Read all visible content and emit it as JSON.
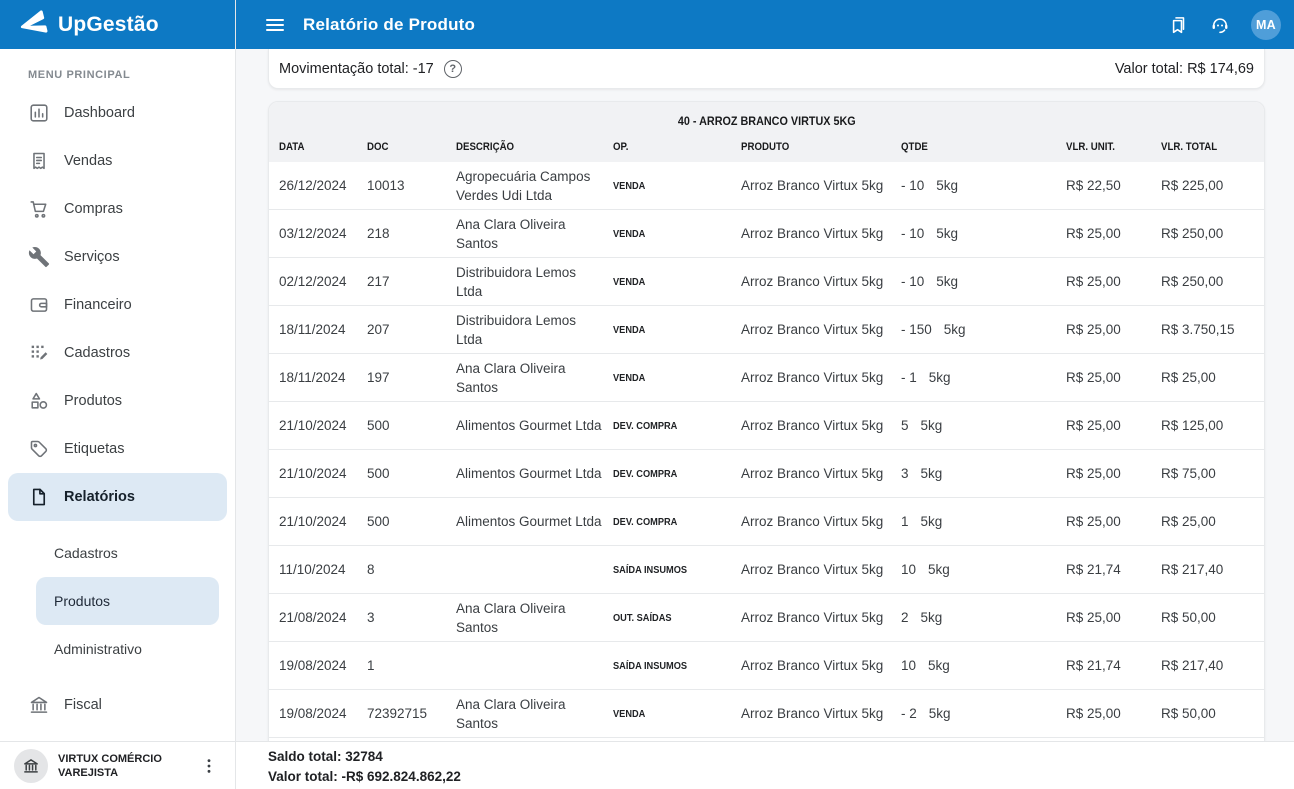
{
  "colors": {
    "header_blue": "#0d79c4",
    "avatar_blue": "#4f9ed9",
    "active_item_bg": "#dde9f4"
  },
  "sidebar": {
    "logo_text": "UpGestão",
    "section_label": "MENU PRINCIPAL",
    "items": [
      {
        "label": "Dashboard",
        "icon": "dashboard-icon"
      },
      {
        "label": "Vendas",
        "icon": "receipt-icon"
      },
      {
        "label": "Compras",
        "icon": "cart-icon"
      },
      {
        "label": "Serviços",
        "icon": "wrench-icon"
      },
      {
        "label": "Financeiro",
        "icon": "wallet-icon"
      },
      {
        "label": "Cadastros",
        "icon": "grid-edit-icon"
      },
      {
        "label": "Produtos",
        "icon": "shapes-icon"
      },
      {
        "label": "Etiquetas",
        "icon": "tag-icon"
      },
      {
        "label": "Relatórios",
        "icon": "document-icon",
        "active": true
      }
    ],
    "report_subitems": [
      {
        "label": "Cadastros"
      },
      {
        "label": "Produtos",
        "active": true
      },
      {
        "label": "Administrativo"
      }
    ],
    "fiscal": {
      "label": "Fiscal",
      "icon": "bank-icon"
    },
    "company": {
      "line1": "VIRTUX COMÉRCIO",
      "line2": "VAREJISTA",
      "icon": "bank-icon"
    }
  },
  "header": {
    "title": "Relatório de Produto",
    "avatar_initials": "MA"
  },
  "summary": {
    "movement_label": "Movimentação total: -17",
    "value_label": "Valor total: R$ 174,69"
  },
  "table": {
    "title": "40 - ARROZ BRANCO VIRTUX 5KG",
    "columns": [
      "DATA",
      "DOC",
      "DESCRIÇÃO",
      "OP.",
      "PRODUTO",
      "QTDE",
      "VLR. UNIT.",
      "VLR. TOTAL"
    ],
    "rows": [
      {
        "data": "26/12/2024",
        "doc": "10013",
        "desc": "Agropecuária Campos Verdes Udi Ltda",
        "op": "VENDA",
        "produto": "Arroz Branco Virtux 5kg",
        "qtde": "- 10",
        "unit": "5kg",
        "vlr_unit": "R$ 22,50",
        "vlr_total": "R$ 225,00"
      },
      {
        "data": "03/12/2024",
        "doc": "218",
        "desc": "Ana Clara Oliveira Santos",
        "op": "VENDA",
        "produto": "Arroz Branco Virtux 5kg",
        "qtde": "- 10",
        "unit": "5kg",
        "vlr_unit": "R$ 25,00",
        "vlr_total": "R$ 250,00"
      },
      {
        "data": "02/12/2024",
        "doc": "217",
        "desc": "Distribuidora Lemos Ltda",
        "op": "VENDA",
        "produto": "Arroz Branco Virtux 5kg",
        "qtde": "- 10",
        "unit": "5kg",
        "vlr_unit": "R$ 25,00",
        "vlr_total": "R$ 250,00"
      },
      {
        "data": "18/11/2024",
        "doc": "207",
        "desc": "Distribuidora Lemos Ltda",
        "op": "VENDA",
        "produto": "Arroz Branco Virtux 5kg",
        "qtde": "- 150",
        "unit": "5kg",
        "vlr_unit": "R$ 25,00",
        "vlr_total": "R$ 3.750,15"
      },
      {
        "data": "18/11/2024",
        "doc": "197",
        "desc": "Ana Clara Oliveira Santos",
        "op": "VENDA",
        "produto": "Arroz Branco Virtux 5kg",
        "qtde": "- 1",
        "unit": "5kg",
        "vlr_unit": "R$ 25,00",
        "vlr_total": "R$ 25,00"
      },
      {
        "data": "21/10/2024",
        "doc": "500",
        "desc": "Alimentos Gourmet Ltda",
        "op": "DEV. COMPRA",
        "produto": "Arroz Branco Virtux 5kg",
        "qtde": "5",
        "unit": "5kg",
        "vlr_unit": "R$ 25,00",
        "vlr_total": "R$ 125,00"
      },
      {
        "data": "21/10/2024",
        "doc": "500",
        "desc": "Alimentos Gourmet Ltda",
        "op": "DEV. COMPRA",
        "produto": "Arroz Branco Virtux 5kg",
        "qtde": "3",
        "unit": "5kg",
        "vlr_unit": "R$ 25,00",
        "vlr_total": "R$ 75,00"
      },
      {
        "data": "21/10/2024",
        "doc": "500",
        "desc": "Alimentos Gourmet Ltda",
        "op": "DEV. COMPRA",
        "produto": "Arroz Branco Virtux 5kg",
        "qtde": "1",
        "unit": "5kg",
        "vlr_unit": "R$ 25,00",
        "vlr_total": "R$ 25,00"
      },
      {
        "data": "11/10/2024",
        "doc": "8",
        "desc": "",
        "op": "SAÍDA INSUMOS",
        "produto": "Arroz Branco Virtux 5kg",
        "qtde": "10",
        "unit": "5kg",
        "vlr_unit": "R$ 21,74",
        "vlr_total": "R$ 217,40"
      },
      {
        "data": "21/08/2024",
        "doc": "3",
        "desc": "Ana Clara Oliveira Santos",
        "op": "OUT. SAÍDAS",
        "produto": "Arroz Branco Virtux 5kg",
        "qtde": "2",
        "unit": "5kg",
        "vlr_unit": "R$ 25,00",
        "vlr_total": "R$ 50,00"
      },
      {
        "data": "19/08/2024",
        "doc": "1",
        "desc": "",
        "op": "SAÍDA INSUMOS",
        "produto": "Arroz Branco Virtux 5kg",
        "qtde": "10",
        "unit": "5kg",
        "vlr_unit": "R$ 21,74",
        "vlr_total": "R$ 217,40"
      },
      {
        "data": "19/08/2024",
        "doc": "72392715",
        "desc": "Ana Clara Oliveira Santos",
        "op": "VENDA",
        "produto": "Arroz Branco Virtux 5kg",
        "qtde": "- 2",
        "unit": "5kg",
        "vlr_unit": "R$ 25,00",
        "vlr_total": "R$ 50,00"
      }
    ]
  },
  "footer": {
    "saldo_label": "Saldo total: 32784",
    "valor_label": "Valor total: -R$ 692.824.862,22"
  }
}
